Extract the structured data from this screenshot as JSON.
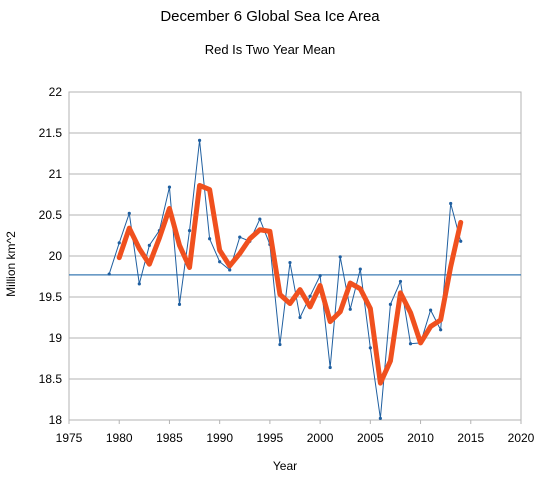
{
  "chart_data": {
    "type": "line",
    "title": "December 6 Global Sea Ice Area",
    "subtitle": "Red Is Two Year Mean",
    "xlabel": "Year",
    "ylabel": "Million km^2",
    "xlim": [
      1975,
      2020
    ],
    "ylim": [
      18,
      22
    ],
    "xticks": [
      1975,
      1980,
      1985,
      1990,
      1995,
      2000,
      2005,
      2010,
      2015,
      2020
    ],
    "xtick_labels": [
      "1975",
      "1980",
      "1985",
      "1990",
      "1995",
      "2000",
      "2005",
      "2010",
      "2015",
      "2020"
    ],
    "yticks": [
      18,
      18.5,
      19,
      19.5,
      20,
      20.5,
      21,
      21.5,
      22
    ],
    "ytick_labels": [
      "18",
      "18.5",
      "19",
      "19.5",
      "20",
      "20.5",
      "21",
      "21.5",
      "22"
    ],
    "grid": "horizontal",
    "legend": "none",
    "series": [
      {
        "color": "#1f5fa0",
        "style": "thin line with markers",
        "x": [
          1979,
          1980,
          1981,
          1982,
          1983,
          1984,
          1985,
          1986,
          1987,
          1988,
          1989,
          1990,
          1991,
          1992,
          1993,
          1994,
          1995,
          1996,
          1997,
          1998,
          1999,
          2000,
          2001,
          2002,
          2003,
          2004,
          2005,
          2006,
          2007,
          2008,
          2009,
          2010,
          2011,
          2012,
          2013,
          2014
        ],
        "y": [
          19.78,
          20.16,
          20.52,
          19.66,
          20.13,
          20.31,
          20.84,
          19.41,
          20.31,
          21.41,
          20.21,
          19.93,
          19.83,
          20.23,
          20.18,
          20.45,
          20.14,
          18.92,
          19.92,
          19.25,
          19.51,
          19.76,
          18.64,
          19.99,
          19.35,
          19.84,
          18.88,
          18.02,
          19.41,
          19.69,
          18.93,
          18.94,
          19.34,
          19.1,
          20.64,
          20.18
        ]
      },
      {
        "color": "#f0501e",
        "style": "thick line",
        "x": [
          1980,
          1981,
          1982,
          1983,
          1984,
          1985,
          1986,
          1987,
          1988,
          1989,
          1990,
          1991,
          1992,
          1993,
          1994,
          1995,
          1996,
          1997,
          1998,
          1999,
          2000,
          2001,
          2002,
          2003,
          2004,
          2005,
          2006,
          2007,
          2008,
          2009,
          2010,
          2011,
          2012,
          2013,
          2014
        ],
        "y": [
          19.98,
          20.34,
          20.09,
          19.9,
          20.22,
          20.58,
          20.13,
          19.86,
          20.86,
          20.81,
          20.07,
          19.88,
          20.03,
          20.21,
          20.32,
          20.3,
          19.53,
          19.42,
          19.59,
          19.38,
          19.64,
          19.2,
          19.32,
          19.67,
          19.6,
          19.36,
          18.45,
          18.72,
          19.55,
          19.31,
          18.94,
          19.14,
          19.22,
          19.87,
          20.41
        ]
      },
      {
        "color": "#3a7ab3",
        "style": "horizontal reference line",
        "x": [
          1975,
          2020
        ],
        "y": [
          19.77,
          19.77
        ]
      }
    ]
  }
}
